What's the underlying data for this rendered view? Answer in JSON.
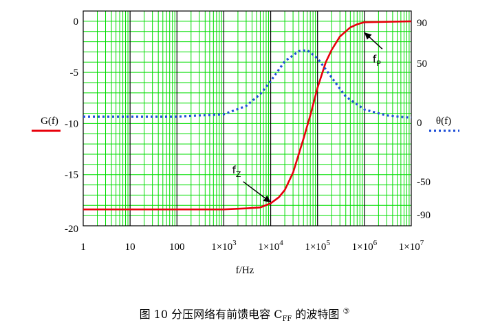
{
  "chart_data": {
    "type": "line",
    "xscale": "log",
    "xlim": [
      1,
      10000000
    ],
    "xticks": [
      {
        "value": 1,
        "label": "1"
      },
      {
        "value": 10,
        "label": "10"
      },
      {
        "value": 100,
        "label": "100"
      },
      {
        "value": 1000,
        "base": "1×10",
        "exp": "3"
      },
      {
        "value": 10000,
        "base": "1×10",
        "exp": "4"
      },
      {
        "value": 100000,
        "base": "1×10",
        "exp": "5"
      },
      {
        "value": 1000000,
        "base": "1×10",
        "exp": "6"
      },
      {
        "value": 10000000,
        "base": "1×10",
        "exp": "7"
      }
    ],
    "xlabel": "f/Hz",
    "y_left": {
      "label": "G(f)",
      "lim": [
        -20,
        1
      ],
      "ticks": [
        {
          "value": 0,
          "label": "0"
        },
        {
          "value": -5,
          "label": "-5"
        },
        {
          "value": -10,
          "label": "-10"
        },
        {
          "value": -15,
          "label": "-15"
        },
        {
          "value": -20,
          "label": "-20"
        }
      ]
    },
    "y_right": {
      "label": "θ(f)",
      "ticks": [
        {
          "value": 90,
          "label": "90"
        },
        {
          "value": 50,
          "label": "50"
        },
        {
          "value": 0,
          "label": "0"
        },
        {
          "value": -50,
          "label": "-50"
        },
        {
          "value": -90,
          "label": "-90"
        }
      ]
    },
    "grid": true,
    "series": [
      {
        "name": "G(f)",
        "axis": "left",
        "color": "#e8000b",
        "style": "solid",
        "x": [
          1,
          10,
          100,
          1000,
          3000,
          6000,
          10000,
          15000,
          20000,
          30000,
          50000,
          70000,
          100000,
          150000,
          200000,
          300000,
          500000,
          700000,
          1000000,
          10000000
        ],
        "y": [
          -18.4,
          -18.4,
          -18.4,
          -18.4,
          -18.3,
          -18.2,
          -17.8,
          -17.2,
          -16.5,
          -14.8,
          -11.5,
          -9.2,
          -6.5,
          -4.0,
          -2.8,
          -1.5,
          -0.6,
          -0.3,
          -0.1,
          0
        ]
      },
      {
        "name": "θ(f)",
        "axis": "right",
        "color": "#1f4fd8",
        "style": "dotted",
        "x": [
          1,
          100,
          1000,
          3000,
          6000,
          10000,
          20000,
          40000,
          60000,
          100000,
          200000,
          400000,
          1000000,
          3000000,
          10000000
        ],
        "y": [
          5,
          5,
          7,
          14,
          24,
          35,
          52,
          62,
          63,
          55,
          38,
          22,
          11,
          6,
          4
        ]
      }
    ],
    "annotations": [
      {
        "base": "f",
        "sub": "Z",
        "x": 10000,
        "y": -17.7,
        "anchor": "left"
      },
      {
        "base": "f",
        "sub": "P",
        "x": 1000000,
        "y": -1.1,
        "anchor": "right"
      }
    ]
  },
  "caption": "图 10 分压网络有前馈电容 C",
  "caption_sub": "FF",
  "caption_tail": " 的波特图 ",
  "caption_mark": "③",
  "colors": {
    "grid": "#00dd00",
    "major_grid": "#000000",
    "gain": "#e8000b",
    "phase": "#1f4fd8"
  }
}
